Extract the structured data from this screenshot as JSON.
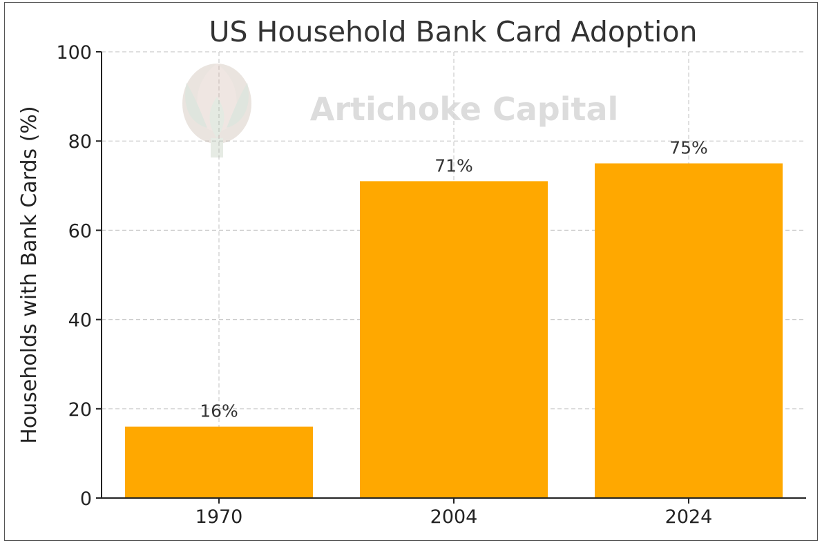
{
  "chart_data": {
    "type": "bar",
    "title": "US Household Bank Card Adoption",
    "xlabel": "",
    "ylabel": "Households with Bank Cards (%)",
    "categories": [
      "1970",
      "2004",
      "2024"
    ],
    "values": [
      16,
      71,
      75
    ],
    "data_labels": [
      "16%",
      "71%",
      "75%"
    ],
    "ylim": [
      0,
      100
    ],
    "yticks": [
      0,
      20,
      40,
      60,
      80,
      100
    ],
    "ytick_labels": [
      "0",
      "20",
      "40",
      "60",
      "80",
      "100"
    ],
    "grid": true,
    "bar_color": "#FFA800"
  },
  "watermark": {
    "text": "Artichoke Capital",
    "logo": "artichoke-logo"
  }
}
